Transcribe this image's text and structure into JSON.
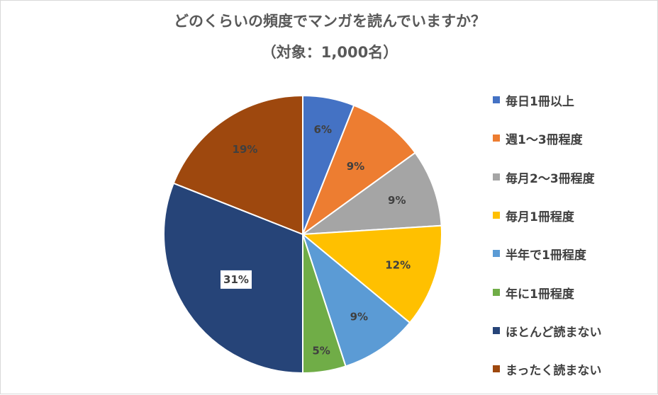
{
  "chart_data": {
    "type": "pie",
    "title": "どのくらいの頻度でマンガを読んでいますか？",
    "subtitle": "（対象：1,000名）",
    "categories": [
      "毎日1冊以上",
      "週1～3冊程度",
      "毎月2～3冊程度",
      "毎月1冊程度",
      "半年で1冊程度",
      "年に1冊程度",
      "ほとんど読まない",
      "まったく読まない"
    ],
    "values": [
      6,
      9,
      9,
      12,
      9,
      5,
      31,
      19
    ],
    "data_labels": [
      "6%",
      "9%",
      "9%",
      "12%",
      "9%",
      "5%",
      "31%",
      "19%"
    ],
    "colors": [
      "#4472C4",
      "#ED7D31",
      "#A5A5A5",
      "#FFC000",
      "#5B9BD5",
      "#70AD47",
      "#264478",
      "#9E480E"
    ],
    "legend_position": "right",
    "start_angle": "12 o'clock",
    "direction": "clockwise"
  }
}
